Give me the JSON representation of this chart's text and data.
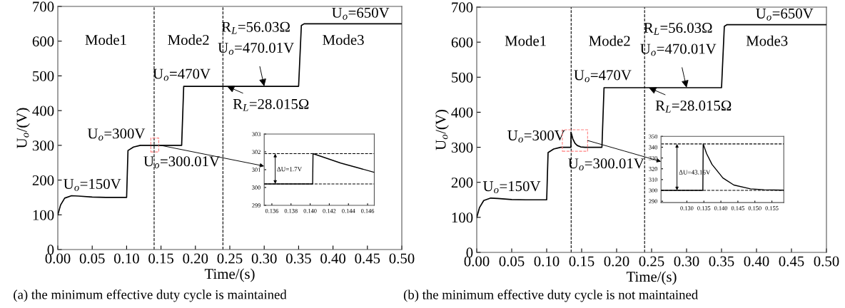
{
  "chart_data": [
    {
      "type": "line",
      "title": "(a) the minimum effective duty cycle is maintained",
      "xlabel": "Time/(s)",
      "ylabel": "U$_{o}$/(V)",
      "xlim": [
        0,
        0.5
      ],
      "ylim": [
        0,
        700
      ],
      "xticks": [
        {
          "value": 0,
          "label": "0.00"
        },
        {
          "value": 0.05,
          "label": "0.05"
        },
        {
          "value": 0.1,
          "label": "0.10"
        },
        {
          "value": 0.15,
          "label": "0.15"
        },
        {
          "value": 0.2,
          "label": "0.20"
        },
        {
          "value": 0.25,
          "label": "0.25"
        },
        {
          "value": 0.3,
          "label": "0.30"
        },
        {
          "value": 0.35,
          "label": "0.35"
        },
        {
          "value": 0.4,
          "label": "0.40"
        },
        {
          "value": 0.45,
          "label": "0.45"
        },
        {
          "value": 0.5,
          "label": "0.50"
        }
      ],
      "yticks": [
        0,
        100,
        200,
        300,
        400,
        500,
        600,
        700
      ],
      "series": [
        {
          "color": "#000000",
          "x": [
            0,
            0.004,
            0.01,
            0.02,
            0.03,
            0.05,
            0.07,
            0.1,
            0.102,
            0.11,
            0.12,
            0.14,
            0.18,
            0.183,
            0.19,
            0.24,
            0.35,
            0.354,
            0.358,
            0.5
          ],
          "values": [
            100,
            128,
            148,
            155,
            154,
            151,
            150,
            150,
            285,
            295,
            300,
            300,
            300,
            470,
            470,
            470,
            470,
            645,
            650,
            650
          ]
        }
      ],
      "ref_lines": [
        {
          "axis": "x",
          "value": 0.14,
          "color": "#000000",
          "line_style": "dashed"
        },
        {
          "axis": "x",
          "value": 0.24,
          "color": "#000000",
          "line_style": "dashed"
        }
      ],
      "annotations": [
        "Mode1",
        "Mode2",
        "Mode3",
        {
          "text": "U$_{o}$=150V",
          "x": 0.05,
          "y": 150
        },
        {
          "text": "U$_{o}$=300V",
          "x": 0.12,
          "y": 300
        },
        {
          "text": "U$_{o}$=300.01V",
          "x": 0.145,
          "y": 300
        },
        {
          "text": "U$_{o}$=470V",
          "x": 0.183,
          "y": 470
        },
        {
          "text": "R$_{L}$=28.015Ω",
          "x": 0.246,
          "y": 470
        },
        "R$_{L}$=56.03Ω",
        {
          "text": "U$_{o}$=470.01V",
          "x": 0.3,
          "y": 470
        },
        {
          "text": "U$_{o}$=650V",
          "x": 0.43,
          "y": 650
        }
      ]
    },
    {
      "type": "line",
      "xlim": [
        0.1352,
        0.1467
      ],
      "ylim": [
        299,
        303
      ],
      "xticks": [
        0.136,
        0.138,
        {
          "value": 0.14,
          "label": "0.140"
        },
        0.142,
        0.144,
        0.146
      ],
      "yticks": [
        299,
        300,
        301,
        302,
        303
      ],
      "series": [
        {
          "color": "#000000",
          "x": [
            0.1352,
            0.14026,
            0.1403,
            0.1432,
            0.1449,
            0.1467
          ],
          "values": [
            300.2,
            300.2,
            301.9,
            301.37,
            301.12,
            300.85
          ]
        }
      ],
      "ref_lines": [
        {
          "axis": "y",
          "value": 300.2,
          "color": "#000000",
          "line_style": "dashed"
        },
        {
          "axis": "y",
          "value": 301.9,
          "color": "#000000",
          "line_style": "dashed"
        }
      ],
      "annotations": [
        "ΔU=1.7V"
      ]
    },
    {
      "type": "line",
      "title": "(b) the minimum effective duty cycle is not maintained",
      "xlabel": "Time/(s)",
      "ylabel": "U$_{o}$/(V)",
      "xlim": [
        0,
        0.5
      ],
      "ylim": [
        0,
        700
      ],
      "xticks": [
        {
          "value": 0,
          "label": "0.00"
        },
        {
          "value": 0.05,
          "label": "0.05"
        },
        {
          "value": 0.1,
          "label": "0.10"
        },
        {
          "value": 0.15,
          "label": "0.15"
        },
        {
          "value": 0.2,
          "label": "0.20"
        },
        {
          "value": 0.25,
          "label": "0.25"
        },
        {
          "value": 0.3,
          "label": "0.30"
        },
        {
          "value": 0.35,
          "label": "0.35"
        },
        {
          "value": 0.4,
          "label": "0.40"
        },
        {
          "value": 0.45,
          "label": "0.45"
        },
        {
          "value": 0.5,
          "label": "0.50"
        }
      ],
      "yticks": [
        0,
        100,
        200,
        300,
        400,
        500,
        600,
        700
      ],
      "series": [
        {
          "color": "#000000",
          "x": [
            0,
            0.004,
            0.01,
            0.02,
            0.03,
            0.05,
            0.07,
            0.1,
            0.102,
            0.11,
            0.12,
            0.1347,
            0.1348,
            0.1374,
            0.1406,
            0.1438,
            0.1487,
            0.155,
            0.179,
            0.182,
            0.19,
            0.24,
            0.35,
            0.354,
            0.358,
            0.5
          ],
          "values": [
            100,
            128,
            148,
            155,
            154,
            151,
            150,
            150,
            285,
            295,
            300,
            300,
            343,
            324,
            311,
            305,
            301,
            300,
            300,
            470,
            470,
            470,
            470,
            645,
            650,
            650
          ]
        }
      ],
      "ref_lines": [
        {
          "axis": "x",
          "value": 0.135,
          "color": "#000000",
          "line_style": "dashed"
        },
        {
          "axis": "x",
          "value": 0.24,
          "color": "#000000",
          "line_style": "dashed"
        }
      ],
      "annotations": [
        "Mode1",
        "Mode2",
        "Mode3",
        {
          "text": "U$_{o}$=150V",
          "x": 0.05,
          "y": 150
        },
        {
          "text": "U$_{o}$=300V",
          "x": 0.12,
          "y": 300
        },
        {
          "text": "U$_{o}$=300.01V",
          "x": 0.15,
          "y": 300
        },
        {
          "text": "U$_{o}$=470V",
          "x": 0.183,
          "y": 470
        },
        {
          "text": "R$_{L}$=28.015Ω",
          "x": 0.246,
          "y": 470
        },
        "R$_{L}$=56.03Ω",
        {
          "text": "U$_{o}$=470.01V",
          "x": 0.3,
          "y": 470
        },
        {
          "text": "U$_{o}$=650V",
          "x": 0.43,
          "y": 650
        }
      ]
    },
    {
      "type": "line",
      "xlim": [
        0.1224,
        0.1585
      ],
      "ylim": [
        288.7,
        350
      ],
      "xticks": [
        {
          "value": 0.13,
          "label": "0.130"
        },
        0.135,
        {
          "value": 0.14,
          "label": "0.140"
        },
        0.145,
        {
          "value": 0.15,
          "label": "0.150"
        },
        0.155
      ],
      "yticks": [
        290,
        300,
        310,
        320,
        330,
        340,
        350
      ],
      "series": [
        {
          "color": "#000000",
          "x": [
            0.1224,
            0.1347,
            0.1348,
            0.1358,
            0.1374,
            0.1406,
            0.1438,
            0.1487,
            0.1527,
            0.1585
          ],
          "values": [
            300,
            300,
            343,
            334,
            324,
            311.5,
            305,
            301.4,
            300.6,
            300.2
          ]
        }
      ],
      "ref_lines": [
        {
          "axis": "y",
          "value": 300,
          "color": "#000000",
          "line_style": "dashed"
        },
        {
          "axis": "y",
          "value": 343,
          "color": "#000000",
          "line_style": "dashed"
        }
      ],
      "annotations": [
        "ΔU=43.16V"
      ]
    }
  ]
}
